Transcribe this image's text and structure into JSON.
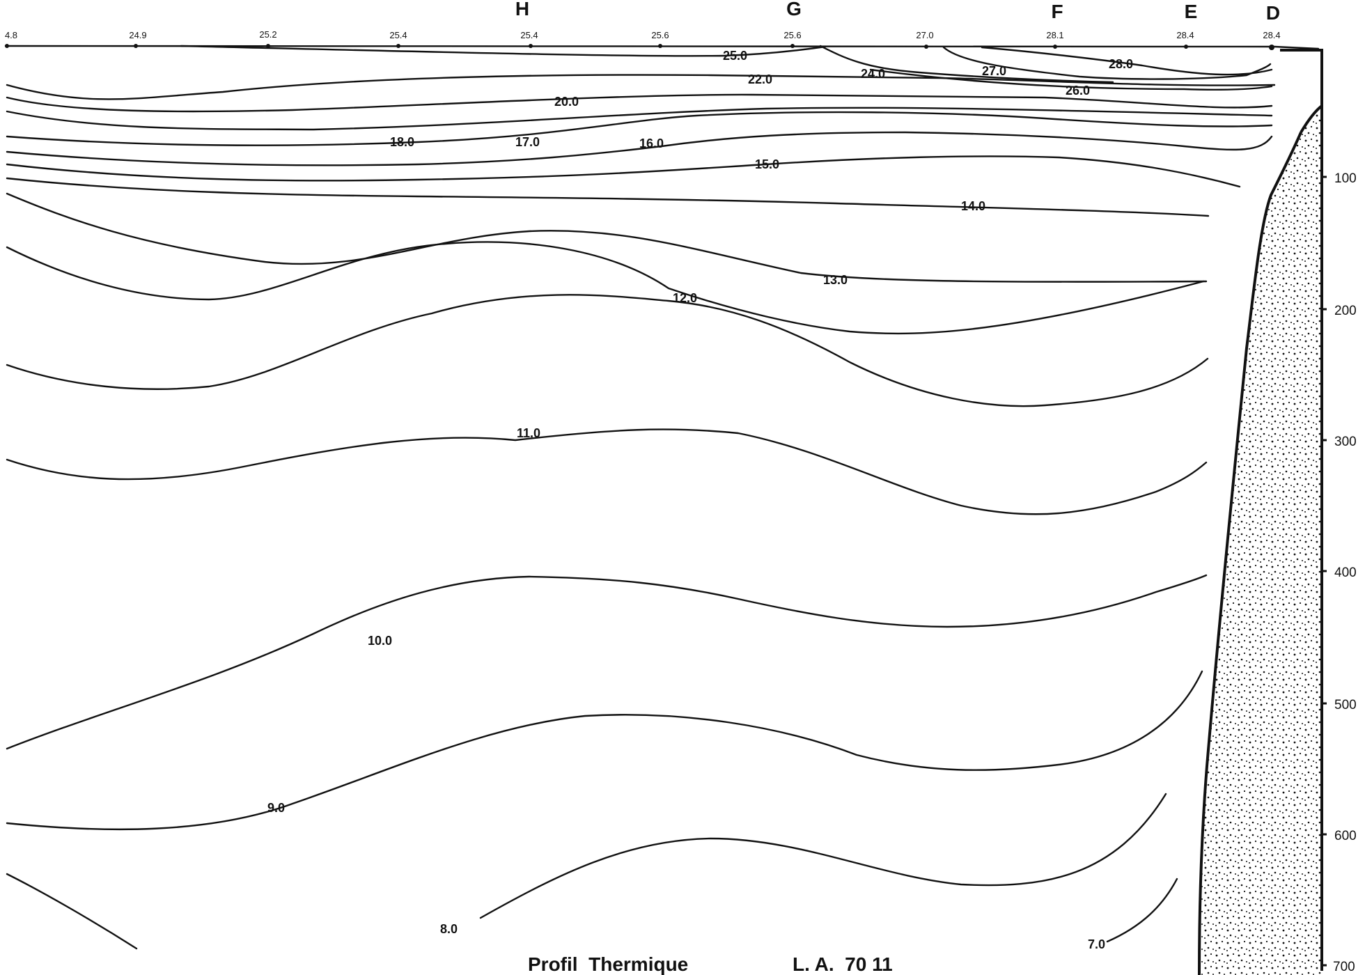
{
  "stations": [
    "H",
    "G",
    "F",
    "E",
    "D"
  ],
  "surface_temperatures": [
    "4.8",
    "24.9",
    "25.2",
    "25.4",
    "25.4",
    "25.6",
    "25.6",
    "27.0",
    "28.1",
    "28.4",
    "28.4"
  ],
  "depth_ticks": [
    "100",
    "200",
    "300",
    "400",
    "500",
    "600",
    "700"
  ],
  "isotherm_labels": [
    "25.0",
    "24.0",
    "27.0",
    "28.0",
    "22.0",
    "20.0",
    "26.0",
    "18.0",
    "17.0",
    "16.0",
    "15.0",
    "14.0",
    "13.0",
    "12.0",
    "11.0",
    "10.0",
    "9.0",
    "8.0",
    "7.0"
  ],
  "caption": {
    "title": "Profil  Thermique",
    "code": "L. A.  70 11"
  },
  "colors": {
    "ink": "#111111",
    "background": "#ffffff"
  }
}
